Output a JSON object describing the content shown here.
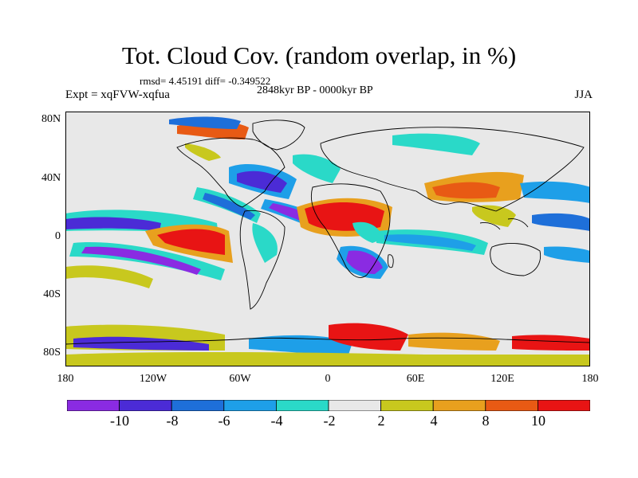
{
  "title": "Tot. Cloud Cov. (random overlap, in %)",
  "stats": "rmsd= 4.45191 diff= -0.349522",
  "experiment": "Expt = xqFVW-xqfua",
  "period": "2848kyr BP - 0000kyr BP",
  "season": "JJA",
  "y_ticks": [
    "80N",
    "40N",
    "0",
    "40S",
    "80S"
  ],
  "x_ticks": [
    "180",
    "120W",
    "60W",
    "0",
    "60E",
    "120E",
    "180"
  ],
  "colorbar": {
    "labels": [
      "-10",
      "-8",
      "-6",
      "-4",
      "-2",
      "2",
      "4",
      "8",
      "10"
    ],
    "colors": [
      "#8a2be2",
      "#4b2bd6",
      "#1e6fd9",
      "#1e9fe8",
      "#2ad9c8",
      "#e8e8e8",
      "#c8c81e",
      "#e8a01e",
      "#e85a14",
      "#e81414"
    ]
  },
  "map_colors": {
    "ocean_background": "#e8e8e8",
    "strong_negative": "#8a2be2",
    "negative": "#1e6fd9",
    "weak_negative": "#2ad9c8",
    "weak_positive": "#c8c81e",
    "positive": "#e8a01e",
    "strong_positive": "#e81414"
  }
}
